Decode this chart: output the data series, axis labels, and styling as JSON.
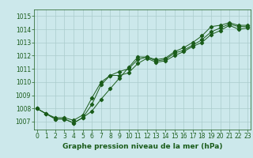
{
  "title": "Graphe pression niveau de la mer (hPa)",
  "bg_color": "#cce8eb",
  "grid_color": "#aacccc",
  "line_color": "#1a5c1a",
  "x_ticks": [
    0,
    1,
    2,
    3,
    4,
    5,
    6,
    7,
    8,
    9,
    10,
    11,
    12,
    13,
    14,
    15,
    16,
    17,
    18,
    19,
    20,
    21,
    22,
    23
  ],
  "y_ticks": [
    1007,
    1008,
    1009,
    1010,
    1011,
    1012,
    1013,
    1014,
    1015
  ],
  "xlim": [
    -0.3,
    23.3
  ],
  "ylim": [
    1006.4,
    1015.5
  ],
  "series1": [
    1008.0,
    1007.6,
    1007.2,
    1007.2,
    1006.9,
    1007.3,
    1007.8,
    1008.7,
    1009.5,
    1010.3,
    1011.1,
    1011.9,
    1011.9,
    1011.7,
    1011.8,
    1012.3,
    1012.6,
    1013.0,
    1013.5,
    1014.2,
    1014.3,
    1014.5,
    1014.3,
    1014.3
  ],
  "series2": [
    1008.0,
    1007.6,
    1007.2,
    1007.2,
    1006.9,
    1007.3,
    1008.3,
    1009.8,
    1010.5,
    1010.8,
    1011.0,
    1011.7,
    1011.9,
    1011.6,
    1011.7,
    1012.2,
    1012.4,
    1012.8,
    1013.2,
    1013.8,
    1014.1,
    1014.4,
    1014.2,
    1014.2
  ],
  "series3": [
    1008.0,
    1007.6,
    1007.3,
    1007.3,
    1007.1,
    1007.5,
    1008.8,
    1010.0,
    1010.5,
    1010.5,
    1010.7,
    1011.4,
    1011.8,
    1011.5,
    1011.6,
    1012.0,
    1012.3,
    1012.7,
    1013.0,
    1013.6,
    1013.9,
    1014.3,
    1014.0,
    1014.1
  ],
  "tick_fontsize": 5.5,
  "label_fontsize": 6.5,
  "linewidth": 0.7,
  "markersize": 2.2
}
